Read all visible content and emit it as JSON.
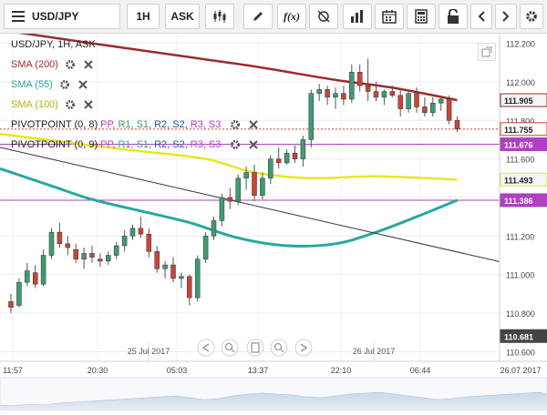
{
  "toolbar": {
    "symbol": "USD/JPY",
    "timeframe": "1H",
    "price_type": "ASK",
    "fx_label": "f(x)"
  },
  "legend": {
    "header": "USD/JPY, 1H, ASK",
    "sma200": "SMA (200)",
    "sma55": "SMA (55)",
    "sma100": "SMA (100)",
    "pivot1_prefix": "PIVOTPOINT (0, 8)",
    "pivot2_prefix": "PIVOTPOINT (0, 9)",
    "pivot_items": [
      "PP,",
      "R1,",
      "S1,",
      "R2,",
      "S2,",
      "R3,",
      "S3"
    ]
  },
  "colors": {
    "up": "#3f9a73",
    "down": "#c8453a",
    "sma200": "#9e2b2b",
    "sma55": "#27a8a0",
    "sma100": "#e6e62a",
    "pivot": "#b13fc4",
    "trend": "#333333",
    "dash": "#d23a2f"
  },
  "chart_data": {
    "type": "candlestick",
    "symbol": "USD/JPY",
    "timeframe": "1H",
    "x_tick_labels": [
      "11:57",
      "20:30",
      "05:03",
      "13:37",
      "22:10",
      "06:44",
      "26.07.2017"
    ],
    "date_markers": [
      "25 Jul 2017",
      "26 Jul 2017"
    ],
    "y_ticks": [
      "112.200",
      "112.000",
      "111.800",
      "111.600",
      "111.400",
      "111.200",
      "111.000",
      "110.800",
      "110.600"
    ],
    "ylim": [
      110.55,
      112.25
    ],
    "price_labels": [
      {
        "text": "111.905",
        "value": 111.905,
        "color": "#9e2b2b",
        "text_color": "#222222",
        "bg": "#f5f5f5"
      },
      {
        "text": "111.755",
        "value": 111.755,
        "color": "#d23a2f",
        "text_color": "#222222",
        "bg": "#ffffff"
      },
      {
        "text": "111.676",
        "value": 111.676,
        "color": "#b13fc4",
        "text_color": "#ffffff",
        "bg": "#b13fc4"
      },
      {
        "text": "111.493",
        "value": 111.493,
        "color": "#e6e62a",
        "text_color": "#222222",
        "bg": "#f5f5f5"
      },
      {
        "text": "111.386",
        "value": 111.386,
        "color": "#b13fc4",
        "text_color": "#ffffff",
        "bg": "#b13fc4"
      },
      {
        "text": "110.681",
        "value": 110.681,
        "color": "#444444",
        "text_color": "#ffffff",
        "bg": "#444444"
      }
    ],
    "pivot_levels": [
      111.676,
      111.386
    ],
    "current_price": 111.755,
    "candles": [
      {
        "o": 110.86,
        "h": 110.9,
        "l": 110.8,
        "c": 110.83
      },
      {
        "o": 110.84,
        "h": 110.98,
        "l": 110.83,
        "c": 110.96
      },
      {
        "o": 110.96,
        "h": 111.06,
        "l": 110.94,
        "c": 111.02
      },
      {
        "o": 111.01,
        "h": 111.05,
        "l": 110.93,
        "c": 110.95
      },
      {
        "o": 110.95,
        "h": 111.13,
        "l": 110.94,
        "c": 111.1
      },
      {
        "o": 111.1,
        "h": 111.24,
        "l": 111.08,
        "c": 111.22
      },
      {
        "o": 111.22,
        "h": 111.27,
        "l": 111.14,
        "c": 111.16
      },
      {
        "o": 111.16,
        "h": 111.2,
        "l": 111.1,
        "c": 111.14
      },
      {
        "o": 111.13,
        "h": 111.16,
        "l": 111.06,
        "c": 111.08
      },
      {
        "o": 111.08,
        "h": 111.14,
        "l": 111.03,
        "c": 111.11
      },
      {
        "o": 111.11,
        "h": 111.15,
        "l": 111.06,
        "c": 111.09
      },
      {
        "o": 111.08,
        "h": 111.11,
        "l": 111.04,
        "c": 111.07
      },
      {
        "o": 111.07,
        "h": 111.12,
        "l": 111.05,
        "c": 111.1
      },
      {
        "o": 111.1,
        "h": 111.17,
        "l": 111.08,
        "c": 111.15
      },
      {
        "o": 111.15,
        "h": 111.23,
        "l": 111.12,
        "c": 111.2
      },
      {
        "o": 111.2,
        "h": 111.26,
        "l": 111.18,
        "c": 111.24
      },
      {
        "o": 111.24,
        "h": 111.3,
        "l": 111.19,
        "c": 111.21
      },
      {
        "o": 111.21,
        "h": 111.24,
        "l": 111.09,
        "c": 111.12
      },
      {
        "o": 111.12,
        "h": 111.15,
        "l": 111.01,
        "c": 111.03
      },
      {
        "o": 111.03,
        "h": 111.07,
        "l": 110.98,
        "c": 111.05
      },
      {
        "o": 111.05,
        "h": 111.09,
        "l": 110.96,
        "c": 110.98
      },
      {
        "o": 110.98,
        "h": 111.01,
        "l": 110.93,
        "c": 110.99
      },
      {
        "o": 110.99,
        "h": 111.0,
        "l": 110.84,
        "c": 110.88
      },
      {
        "o": 110.88,
        "h": 111.1,
        "l": 110.86,
        "c": 111.08
      },
      {
        "o": 111.08,
        "h": 111.22,
        "l": 111.06,
        "c": 111.2
      },
      {
        "o": 111.2,
        "h": 111.3,
        "l": 111.18,
        "c": 111.28
      },
      {
        "o": 111.28,
        "h": 111.42,
        "l": 111.25,
        "c": 111.4
      },
      {
        "o": 111.4,
        "h": 111.45,
        "l": 111.34,
        "c": 111.38
      },
      {
        "o": 111.38,
        "h": 111.52,
        "l": 111.36,
        "c": 111.5
      },
      {
        "o": 111.5,
        "h": 111.56,
        "l": 111.44,
        "c": 111.53
      },
      {
        "o": 111.53,
        "h": 111.57,
        "l": 111.38,
        "c": 111.41
      },
      {
        "o": 111.41,
        "h": 111.53,
        "l": 111.39,
        "c": 111.5
      },
      {
        "o": 111.5,
        "h": 111.62,
        "l": 111.47,
        "c": 111.6
      },
      {
        "o": 111.6,
        "h": 111.66,
        "l": 111.55,
        "c": 111.58
      },
      {
        "o": 111.58,
        "h": 111.65,
        "l": 111.57,
        "c": 111.63
      },
      {
        "o": 111.63,
        "h": 111.67,
        "l": 111.58,
        "c": 111.6
      },
      {
        "o": 111.6,
        "h": 111.72,
        "l": 111.56,
        "c": 111.7
      },
      {
        "o": 111.7,
        "h": 111.96,
        "l": 111.66,
        "c": 111.94
      },
      {
        "o": 111.94,
        "h": 111.99,
        "l": 111.9,
        "c": 111.96
      },
      {
        "o": 111.96,
        "h": 111.98,
        "l": 111.88,
        "c": 111.92
      },
      {
        "o": 111.92,
        "h": 111.97,
        "l": 111.86,
        "c": 111.94
      },
      {
        "o": 111.94,
        "h": 111.98,
        "l": 111.88,
        "c": 111.91
      },
      {
        "o": 111.91,
        "h": 112.09,
        "l": 111.89,
        "c": 112.05
      },
      {
        "o": 112.05,
        "h": 112.09,
        "l": 111.95,
        "c": 111.98
      },
      {
        "o": 111.98,
        "h": 112.12,
        "l": 111.9,
        "c": 111.95
      },
      {
        "o": 111.95,
        "h": 112.0,
        "l": 111.9,
        "c": 111.92
      },
      {
        "o": 111.92,
        "h": 111.96,
        "l": 111.88,
        "c": 111.95
      },
      {
        "o": 111.95,
        "h": 111.98,
        "l": 111.92,
        "c": 111.93
      },
      {
        "o": 111.93,
        "h": 111.96,
        "l": 111.82,
        "c": 111.86
      },
      {
        "o": 111.86,
        "h": 111.96,
        "l": 111.84,
        "c": 111.94
      },
      {
        "o": 111.94,
        "h": 111.97,
        "l": 111.84,
        "c": 111.87
      },
      {
        "o": 111.87,
        "h": 111.92,
        "l": 111.82,
        "c": 111.84
      },
      {
        "o": 111.84,
        "h": 111.92,
        "l": 111.82,
        "c": 111.89
      },
      {
        "o": 111.89,
        "h": 111.93,
        "l": 111.85,
        "c": 111.91
      },
      {
        "o": 111.91,
        "h": 111.93,
        "l": 111.78,
        "c": 111.8
      },
      {
        "o": 111.8,
        "h": 111.82,
        "l": 111.74,
        "c": 111.755
      }
    ],
    "sma200": [
      {
        "i": 0,
        "v": 112.27
      },
      {
        "i": 10,
        "v": 112.2
      },
      {
        "i": 20,
        "v": 112.14
      },
      {
        "i": 30,
        "v": 112.08
      },
      {
        "i": 40,
        "v": 112.01
      },
      {
        "i": 47,
        "v": 111.97
      },
      {
        "i": 55,
        "v": 111.905
      }
    ],
    "sma100": [
      {
        "i": 0,
        "v": 111.73
      },
      {
        "i": 8,
        "v": 111.68
      },
      {
        "i": 16,
        "v": 111.64
      },
      {
        "i": 24,
        "v": 111.6
      },
      {
        "i": 30,
        "v": 111.53
      },
      {
        "i": 37,
        "v": 111.5
      },
      {
        "i": 45,
        "v": 111.51
      },
      {
        "i": 55,
        "v": 111.493
      }
    ],
    "sma55": [
      {
        "i": 0,
        "v": 111.55
      },
      {
        "i": 5,
        "v": 111.46
      },
      {
        "i": 10,
        "v": 111.39
      },
      {
        "i": 16,
        "v": 111.33
      },
      {
        "i": 22,
        "v": 111.27
      },
      {
        "i": 28,
        "v": 111.19
      },
      {
        "i": 34,
        "v": 111.15
      },
      {
        "i": 40,
        "v": 111.16
      },
      {
        "i": 45,
        "v": 111.22
      },
      {
        "i": 50,
        "v": 111.3
      },
      {
        "i": 55,
        "v": 111.386
      }
    ],
    "trendline": [
      {
        "i": 0,
        "v": 111.66
      },
      {
        "i": 62,
        "v": 111.05
      }
    ]
  }
}
